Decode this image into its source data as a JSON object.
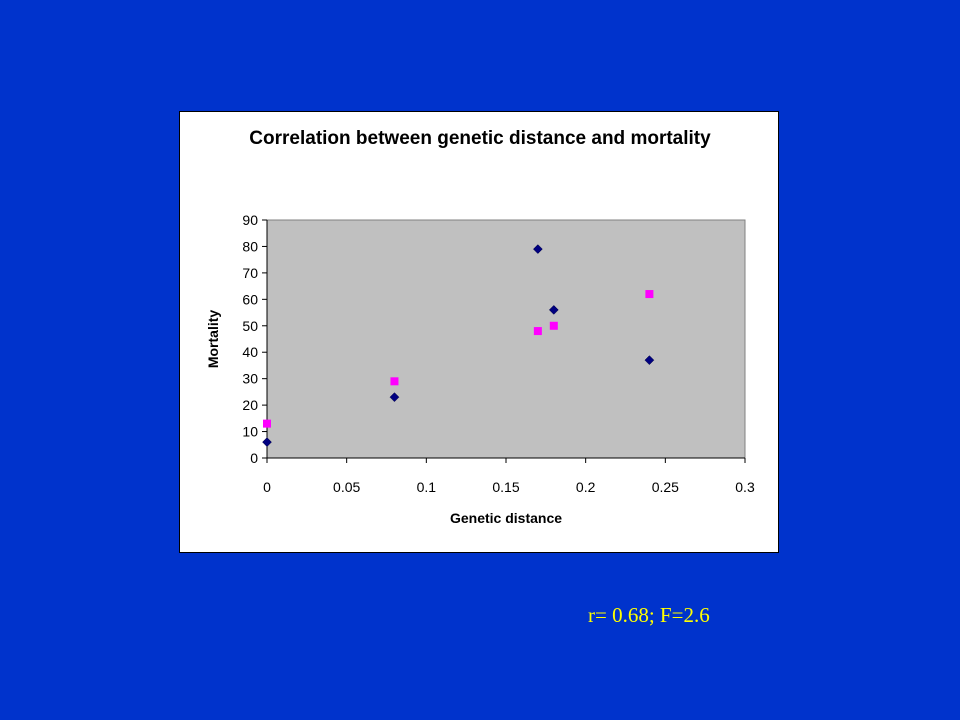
{
  "chart_data": {
    "type": "scatter",
    "title": "Correlation between genetic distance and mortality",
    "xlabel": "Genetic distance",
    "ylabel": "Mortality",
    "xlim": [
      0,
      0.3
    ],
    "ylim": [
      0,
      90
    ],
    "x_ticks": [
      "0",
      "0.05",
      "0.1",
      "0.15",
      "0.2",
      "0.25",
      "0.3"
    ],
    "y_ticks": [
      "0",
      "10",
      "20",
      "30",
      "40",
      "50",
      "60",
      "70",
      "80",
      "90"
    ],
    "grid": false,
    "legend": "none",
    "plot_background": "#c0c0c0",
    "series": [
      {
        "marker": "diamond",
        "color": "#000080",
        "points": [
          {
            "x": 0,
            "y": 6
          },
          {
            "x": 0.08,
            "y": 23
          },
          {
            "x": 0.17,
            "y": 79
          },
          {
            "x": 0.18,
            "y": 56
          },
          {
            "x": 0.24,
            "y": 37
          }
        ]
      },
      {
        "marker": "square",
        "color": "#ff00ff",
        "points": [
          {
            "x": 0,
            "y": 13
          },
          {
            "x": 0.08,
            "y": 29
          },
          {
            "x": 0.17,
            "y": 48
          },
          {
            "x": 0.18,
            "y": 50
          },
          {
            "x": 0.24,
            "y": 62
          }
        ]
      }
    ]
  },
  "caption": "r= 0.68; F=2.6",
  "colors": {
    "slide_background": "#0033cc",
    "caption": "#ffff00"
  }
}
